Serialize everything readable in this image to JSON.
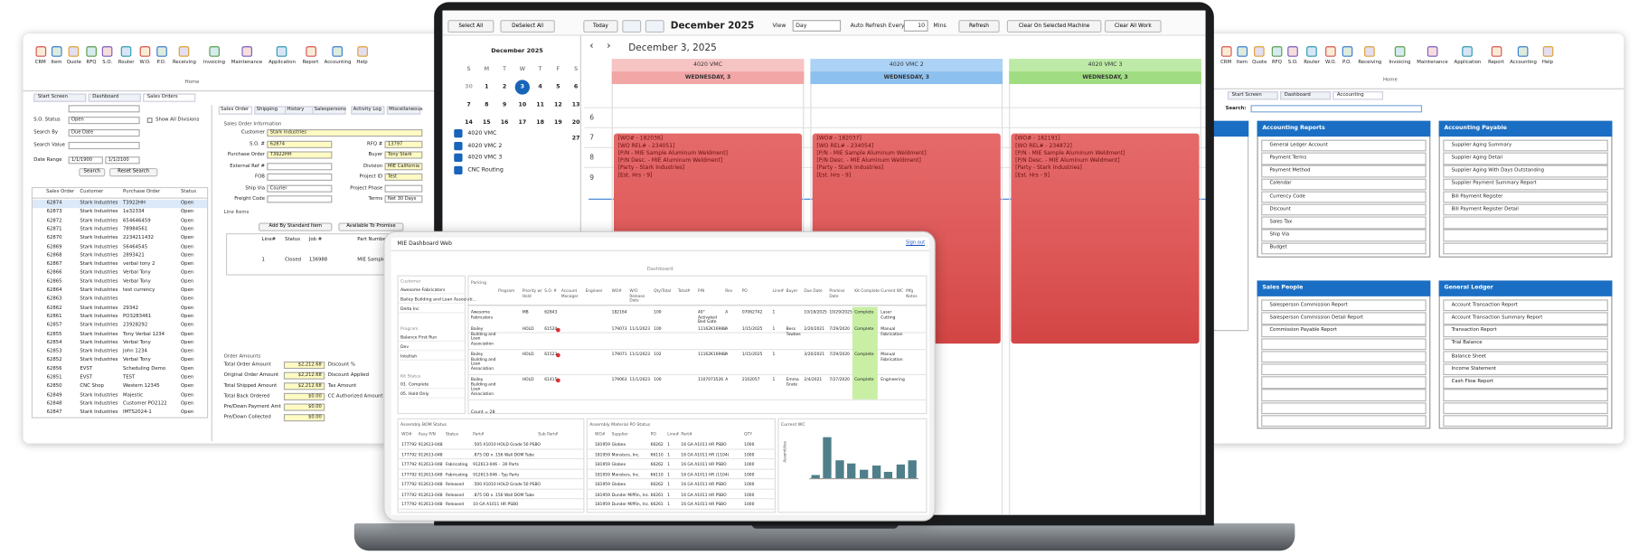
{
  "left_window": {
    "ribbon": [
      "CRM",
      "Item",
      "Quote",
      "RFQ",
      "S.O.",
      "Router",
      "W.O.",
      "P.O.",
      "Receiving",
      "Invoicing",
      "Maintenance",
      "Application",
      "Report",
      "Accounting",
      "Help"
    ],
    "ribbon_group": "Home",
    "tabs": [
      "Start Screen",
      "Dashboard",
      "Sales Orders"
    ],
    "filters": {
      "status_label": "S.O. Status",
      "status": "Open",
      "search_by_label": "Search By",
      "search_by": "Due Date",
      "search_value_label": "Search Value",
      "date_range_label": "Date Range",
      "date_from": "1/1/1900",
      "date_to": "1/1/2100",
      "show_all": "Show All Divisions",
      "search_button": "Search",
      "reset_button": "Reset Search"
    },
    "grid": {
      "columns": [
        "Sales Order",
        "Customer",
        "Purchase Order",
        "Status"
      ],
      "rows": [
        [
          "62874",
          "Stark Industries",
          "T3922HH",
          "Open"
        ],
        [
          "62873",
          "Stark Industries",
          "1e32334",
          "Open"
        ],
        [
          "62872",
          "Stark Industries",
          "654646459",
          "Open"
        ],
        [
          "62871",
          "Stark Industries",
          "78984561",
          "Open"
        ],
        [
          "62870",
          "Stark Industries",
          "2234211432",
          "Open"
        ],
        [
          "62869",
          "Stark Industries",
          "56464545",
          "Open"
        ],
        [
          "62868",
          "Stark Industries",
          "2893421",
          "Open"
        ],
        [
          "62867",
          "Stark Industries",
          "verbal tony 2",
          "Open"
        ],
        [
          "62866",
          "Stark Industries",
          "Verbal Tony",
          "Open"
        ],
        [
          "62865",
          "Stark Industries",
          "Verbal Tony",
          "Open"
        ],
        [
          "62864",
          "Stark Industries",
          "test currency",
          "Open"
        ],
        [
          "62863",
          "Stark Industries",
          null,
          "Open"
        ],
        [
          "62862",
          "Stark Industries",
          "29342",
          "Open"
        ],
        [
          "62861",
          "Stark Industries",
          "PO3283461",
          "Open"
        ],
        [
          "62857",
          "Stark Industries",
          "23928292",
          "Open"
        ],
        [
          "62855",
          "Stark Industries",
          "Tony Verbal 1234",
          "Open"
        ],
        [
          "62854",
          "Stark Industries",
          "Verbal Tony",
          "Open"
        ],
        [
          "62853",
          "Stark Industries",
          "John 1234",
          "Open"
        ],
        [
          "62852",
          "Stark Industries",
          "Verbal Tony",
          "Open"
        ],
        [
          "62856",
          "EVST",
          "Scheduling Demo",
          "Open"
        ],
        [
          "62851",
          "EVST",
          "TEST",
          "Open"
        ],
        [
          "62850",
          "CNC Shop",
          "Western 12345",
          "Open"
        ],
        [
          "62849",
          "Stark Industries",
          "Majestic",
          "Open"
        ],
        [
          "62848",
          "Stark Industries",
          "Customer PO2122",
          "Open"
        ],
        [
          "62847",
          "Stark Industries",
          "IMTS2024-1",
          "Open"
        ]
      ]
    },
    "form": {
      "tabs": [
        "Sales Order",
        "Shipping",
        "History",
        "Salespersons",
        "Activity Log",
        "Miscellaneous"
      ],
      "section": "Sales Order Information",
      "left_fields": [
        [
          "Customer",
          "Stark Industries"
        ],
        [
          "S.O. #",
          "62874"
        ],
        [
          "Purchase Order",
          "T3922HH"
        ],
        [
          "External Ref #",
          null
        ],
        [
          "FOB",
          null
        ],
        [
          "Ship Via",
          "Courier"
        ],
        [
          "Freight Code",
          null
        ]
      ],
      "right_fields": [
        [
          "RFQ #",
          "13797"
        ],
        [
          "Buyer",
          "Tony Stark"
        ],
        [
          "Division",
          "MIE California"
        ],
        [
          "Project ID",
          "Test"
        ],
        [
          "Project Phase",
          null
        ],
        [
          "Terms",
          "Net 30 Days"
        ]
      ]
    },
    "line_items": {
      "title": "Line Items",
      "add_button": "Add By Standard Item",
      "atp_button": "Available To Promise",
      "columns": [
        "Line#",
        "Status",
        "Job #",
        "Part Number"
      ],
      "row": [
        "1",
        "Closed",
        "136988",
        "MIE Sample Aluminum"
      ]
    },
    "order_amounts": {
      "title": "Order Amounts",
      "rows": [
        [
          "Total Order Amount",
          "$2,212.68",
          "Discount %"
        ],
        [
          "Original Order Amount",
          "$2,212.68",
          "Discount Applied"
        ],
        [
          "Total Shipped Amount",
          "$2,212.68",
          "Tax Amount"
        ],
        [
          "Total Back Ordered",
          "$0.00",
          "CC Authorized Amount"
        ],
        [
          "Pre/Down Payment Amt",
          "$0.00",
          null
        ],
        [
          "Pre/Down Collected",
          "$0.00",
          null
        ]
      ]
    }
  },
  "schedule": {
    "toolbar": {
      "select_all": "Select All",
      "deselect_all": "DeSelect All",
      "today": "Today",
      "month": "December 2025",
      "view_label": "View",
      "view": "Day",
      "auto_refresh": "Auto Refresh Every",
      "interval": "10",
      "mins": "Mins",
      "refresh": "Refresh",
      "clear_machine": "Clear On Selected Machine",
      "clear_all": "Clear All Work"
    },
    "mini_calendar": {
      "title": "December 2025",
      "weekdays": [
        "S",
        "M",
        "T",
        "W",
        "T",
        "F",
        "S"
      ],
      "weeks": [
        [
          "30",
          "1",
          "2",
          "3",
          "4",
          "5",
          "6"
        ],
        [
          "7",
          "8",
          "9",
          "10",
          "11",
          "12",
          "13"
        ],
        [
          "14",
          "15",
          "16",
          "17",
          "18",
          "19",
          "20"
        ]
      ],
      "extra_day": "27"
    },
    "machines": [
      "4020 VMC",
      "4020 VMC 2",
      "4020 VMC 3",
      "CNC Routing"
    ],
    "date": "December 3, 2025",
    "hours": [
      "6",
      "7",
      "8",
      "9"
    ],
    "columns": [
      {
        "name": "4020 VMC",
        "day": "WEDNESDAY, 3",
        "color": "#f7c4c4",
        "day_color": "#f2a6a6",
        "event": [
          "[WO# - 182036]",
          "[WO REL# - 234051]",
          "[P/N - MIE Sample Aluminum Weldment]",
          "[P/N Desc. - MIE Aluminum Weldment]",
          "[Party - Stark Industries]",
          "[Est. Hrs - 9]"
        ]
      },
      {
        "name": "4020 VMC 2",
        "day": "WEDNESDAY, 3",
        "color": "#acd2f5",
        "day_color": "#8cc0ef",
        "event": [
          "[WO# - 182037]",
          "[WO REL# - 234054]",
          "[P/N - MIE Sample Aluminum Weldment]",
          "[P/N Desc. - MIE Aluminum Weldment]",
          "[Party - Stark Industries]",
          "[Est. Hrs - 9]"
        ]
      },
      {
        "name": "4020 VMC 3",
        "day": "WEDNESDAY, 3",
        "color": "#bdeaa6",
        "day_color": "#a0dd82",
        "event": [
          "[WO# - 182191]",
          "[WO REL# - 234872]",
          "[P/N - MIE Sample Aluminum Weldment]",
          "[P/N Desc. - MIE Aluminum Weldment]",
          "[Party - Stark Industries]",
          "[Est. Hrs - 9]"
        ]
      }
    ]
  },
  "tablet": {
    "title": "MIE Dashboard Web",
    "sign_out": "Sign out",
    "heading": "Dashboard",
    "filters": [
      {
        "label": "Customer",
        "items": [
          "Awesome Fabricators",
          "Bailey Building and Loan Associati...",
          "Delta Inc"
        ]
      },
      {
        "label": "Program",
        "items": [
          "Balance First Run",
          "Dev",
          "Intellish"
        ]
      },
      {
        "label": "Kit Status",
        "items": [
          "01. Complete",
          "05. Hold Only"
        ]
      }
    ],
    "table": {
      "section": "Parking",
      "columns": [
        "Program",
        "Priority w/ Hold",
        "S.O. #",
        "Account Manager",
        "Engineer",
        "WO#",
        "W/O Release Date",
        "Qty/Total",
        "Total#",
        "P/N",
        "Rev",
        "PO",
        "Line#",
        "Buyer",
        "Due Date",
        "Promise Date",
        "Kit Complete",
        "Current WC",
        "Mfg Notes"
      ],
      "rows": [
        [
          "Awesome Fabricators",
          null,
          "MB",
          "62843",
          null,
          null,
          "182164",
          null,
          "100",
          null,
          "40\" Activated Bed Gate",
          "A",
          "07062742",
          "1",
          null,
          "10/18/2025",
          "10/29/2025",
          "Complete",
          "Laser Cutting",
          null
        ],
        [
          "Bailey Building and Loan Association",
          null,
          "HOLD",
          "61520",
          null,
          null,
          "179073",
          "11/1/2023",
          "100",
          null,
          "11162K16988",
          "A",
          "1/15/2025",
          "1",
          "Bess Towbes",
          "2/20/2021",
          "7/29/2020",
          "Complete",
          "Manual Fabrication",
          null
        ],
        [
          "Bailey Building and Loan Association",
          null,
          "HOLD",
          "61523",
          null,
          null,
          "179071",
          "11/1/2023",
          "102",
          null,
          "11162K16988",
          "A",
          "1/15/2025",
          "1",
          null,
          "3/20/2021",
          "7/29/2020",
          "Complete",
          "Manual Fabrication",
          null
        ],
        [
          "Bailey Building and Loan Association",
          null,
          "HOLD",
          "61415",
          null,
          null,
          "179063",
          "11/1/2023",
          "100",
          null,
          "1107073526",
          "A",
          "2102057",
          "1",
          "Emma Grate",
          "2/4/2021",
          "7/27/2020",
          "Complete",
          "Engineering",
          null
        ]
      ],
      "count": "Count = 28"
    },
    "bom": {
      "title": "Assembly BOM Status",
      "columns": [
        "WO#",
        "Assy P/N",
        "Status",
        "Part#",
        "Sub Part#"
      ],
      "rows": [
        [
          "177792",
          "912613-048",
          null,
          ".505 X1010 HOLD Grade 50 PSBO",
          null
        ],
        [
          "177792",
          "912613-048",
          null,
          ".875 OD x .156 Wall DOM Tube",
          null
        ],
        [
          "177792",
          "912613-048",
          "Fabricating",
          "912613-046 - .30 Parts",
          null
        ],
        [
          "177792",
          "912613-048",
          "Fabricating",
          "912613-046 - Typ Parts",
          null
        ],
        [
          "177792",
          "912613-048",
          "Released",
          ".500 X1010 HOLD Grade 50 PSBO",
          null
        ],
        [
          "177792",
          "912613-048",
          "Released",
          ".875 OD x .156 Wall DOM Tube",
          null
        ],
        [
          "177792",
          "912613-048",
          "Released",
          "10 GA A1011 HR PSBO",
          null
        ]
      ]
    },
    "po": {
      "title": "Assembly Material PO Status",
      "columns": [
        "WO#",
        "Supplier",
        "PO",
        "Line#",
        "Part#",
        "QTY"
      ],
      "rows": [
        [
          "181959",
          "Globex",
          "66262",
          "1",
          "16 GA A1011 HR PSBO",
          "1000"
        ],
        [
          "181959",
          "Monsters, Inc.",
          "66110",
          "1",
          "16 GA A1011 HR (1104)",
          "1000"
        ],
        [
          "181959",
          "Globex",
          "66262",
          "1",
          "16 GA A1011 HR PSBO",
          "1000"
        ],
        [
          "181959",
          "Monsters, Inc.",
          "66110",
          "1",
          "16 GA A1011 HR (1104)",
          "1000"
        ],
        [
          "181959",
          "Globex",
          "66262",
          "1",
          "16 GA A1011 HR PSBO",
          "1000"
        ],
        [
          "181959",
          "Dunder Mifflin, Inc.",
          "66261",
          "1",
          "16 GA A1011 HR PSBO",
          "1000"
        ],
        [
          "181959",
          "Dunder Mifflin, Inc.",
          "66261",
          "1",
          "16 GA A1011 HR PSBO",
          "1000"
        ]
      ]
    },
    "chart_data": {
      "type": "bar",
      "title": "Current WC",
      "y_label": "Assemblies",
      "categories": [
        null,
        null,
        null,
        null,
        null,
        null,
        null,
        null,
        null
      ],
      "values": [
        0.5,
        6,
        2.7,
        2.2,
        1.2,
        1.8,
        0.9,
        2.1,
        2.7
      ],
      "color": "#4f7f8a",
      "ylim": [
        0,
        7
      ]
    }
  },
  "right_window": {
    "ribbon": [
      "CRM",
      "Item",
      "Quote",
      "RFQ",
      "S.O.",
      "Router",
      "W.O.",
      "P.O.",
      "Receiving",
      "Invoicing",
      "Maintenance",
      "Application",
      "Report",
      "Accounting",
      "Help"
    ],
    "ribbon_group": "Home",
    "tabs": [
      "Start Screen",
      "Dashboard",
      "Accounting"
    ],
    "search_label": "Search:",
    "panels": [
      {
        "title": "Accounting Reports",
        "items": [
          "General Ledger Account",
          "Payment Terms",
          "Payment Method",
          "Calendar",
          "Currency Code",
          "Discount",
          "Sales Tax",
          "Ship Via",
          "Budget"
        ]
      },
      {
        "title": "Accounting Payable",
        "items": [
          "Supplier Aging Summary",
          "Supplier Aging Detail",
          "Supplier Aging With Days Outstanding",
          "Supplier Payment Summary Report",
          "Bill Payment Register",
          "Bill Payment Register Detail"
        ]
      },
      {
        "title": "Sales People",
        "items": [
          "Salesperson Commission Report",
          "Salesperson Commission Detail Report",
          "Commission Payable Report"
        ]
      },
      {
        "title": "General Ledger",
        "items": [
          "Account Transaction Report",
          "Account Transaction Summary Report",
          "Transaction Report",
          "Trial Balance",
          "Balance Sheet",
          "Income Statement",
          "Cash Flow Report"
        ]
      }
    ]
  }
}
